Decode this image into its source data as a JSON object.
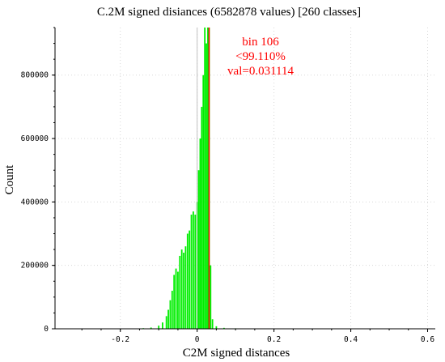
{
  "chart_data": {
    "type": "bar",
    "title": "C.2M signed disiances (6582878 values) [260 classes]",
    "xlabel": "C2M signed distances",
    "ylabel": "Count",
    "xlim": [
      -0.37,
      0.62
    ],
    "ylim": [
      0,
      950000
    ],
    "x_ticks": [
      -0.2,
      0,
      0.2,
      0.4,
      0.6
    ],
    "x_tick_labels": [
      "-0.2",
      "0",
      "0.2",
      "0.4",
      "0.6"
    ],
    "y_ticks": [
      0,
      200000,
      400000,
      600000,
      800000
    ],
    "y_tick_labels": [
      "0",
      "200000",
      "400000",
      "600000",
      "800000"
    ],
    "grid": true,
    "bar_color": "#00ee00",
    "bin_width": 0.0038,
    "x": [
      -0.14,
      -0.12,
      -0.1,
      -0.09,
      -0.08,
      -0.075,
      -0.07,
      -0.065,
      -0.06,
      -0.055,
      -0.05,
      -0.045,
      -0.04,
      -0.035,
      -0.03,
      -0.025,
      -0.02,
      -0.015,
      -0.01,
      -0.005,
      0.0,
      0.004,
      0.008,
      0.012,
      0.016,
      0.02,
      0.024,
      0.028,
      0.031,
      0.035,
      0.04,
      0.05,
      0.07,
      0.1,
      0.15,
      0.2,
      0.3,
      0.4,
      0.5,
      0.6
    ],
    "values": [
      2000,
      4000,
      10000,
      20000,
      40000,
      60000,
      90000,
      120000,
      170000,
      190000,
      180000,
      230000,
      250000,
      240000,
      260000,
      300000,
      310000,
      360000,
      370000,
      360000,
      400000,
      500000,
      600000,
      700000,
      800000,
      950000,
      900000,
      950000,
      950000,
      200000,
      30000,
      8000,
      3000,
      1500,
      1000,
      500,
      300,
      200,
      100,
      50
    ],
    "threshold": {
      "x": 0.031114,
      "color": "#ff0000",
      "label_lines": [
        "bin 106",
        "<99.110%",
        "val=0.031114"
      ]
    },
    "reference_line": {
      "x": 0,
      "color": "#c0c0c0"
    }
  }
}
